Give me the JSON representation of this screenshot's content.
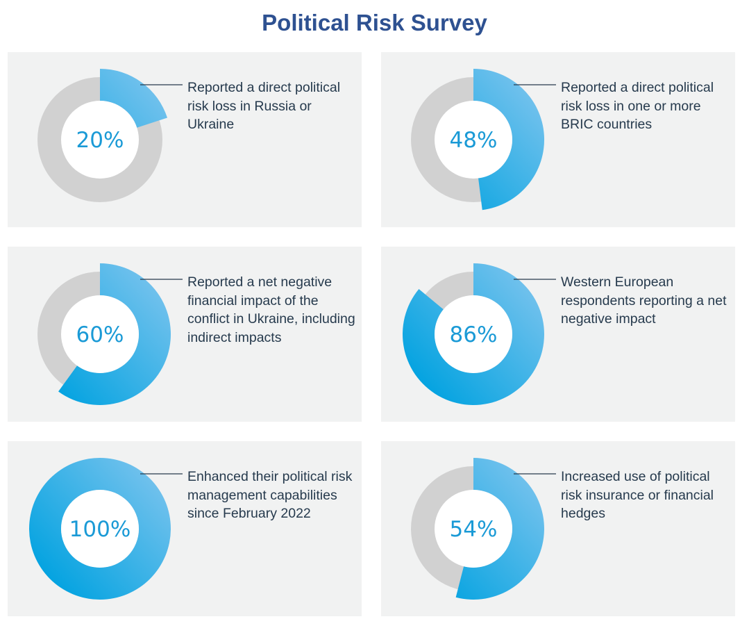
{
  "title": "Political Risk Survey",
  "colors": {
    "title": "#2e5191",
    "panel_bg": "#f1f2f2",
    "track": "#d1d1d1",
    "arc_light": "#7cc4ee",
    "arc_dark": "#00a2e0",
    "percent_text": "#1a9ad6",
    "body_text": "#263a4d"
  },
  "chart_data": {
    "type": "pie",
    "variant": "donut",
    "unit": "%",
    "items": [
      {
        "value": 20,
        "label": "20%",
        "description": "Reported a direct political risk loss in Russia or Ukraine"
      },
      {
        "value": 48,
        "label": "48%",
        "description": "Reported a direct political risk loss in one or more BRIC countries"
      },
      {
        "value": 60,
        "label": "60%",
        "description": "Reported a net negative financial impact of the conflict in Ukraine, including indirect impacts"
      },
      {
        "value": 86,
        "label": "86%",
        "description": "Western European respondents reporting a net negative impact"
      },
      {
        "value": 100,
        "label": "100%",
        "description": "Enhanced their political risk management capabilities since February 2022"
      },
      {
        "value": 54,
        "label": "54%",
        "description": "Increased use of political risk insurance or financial hedges"
      }
    ]
  }
}
